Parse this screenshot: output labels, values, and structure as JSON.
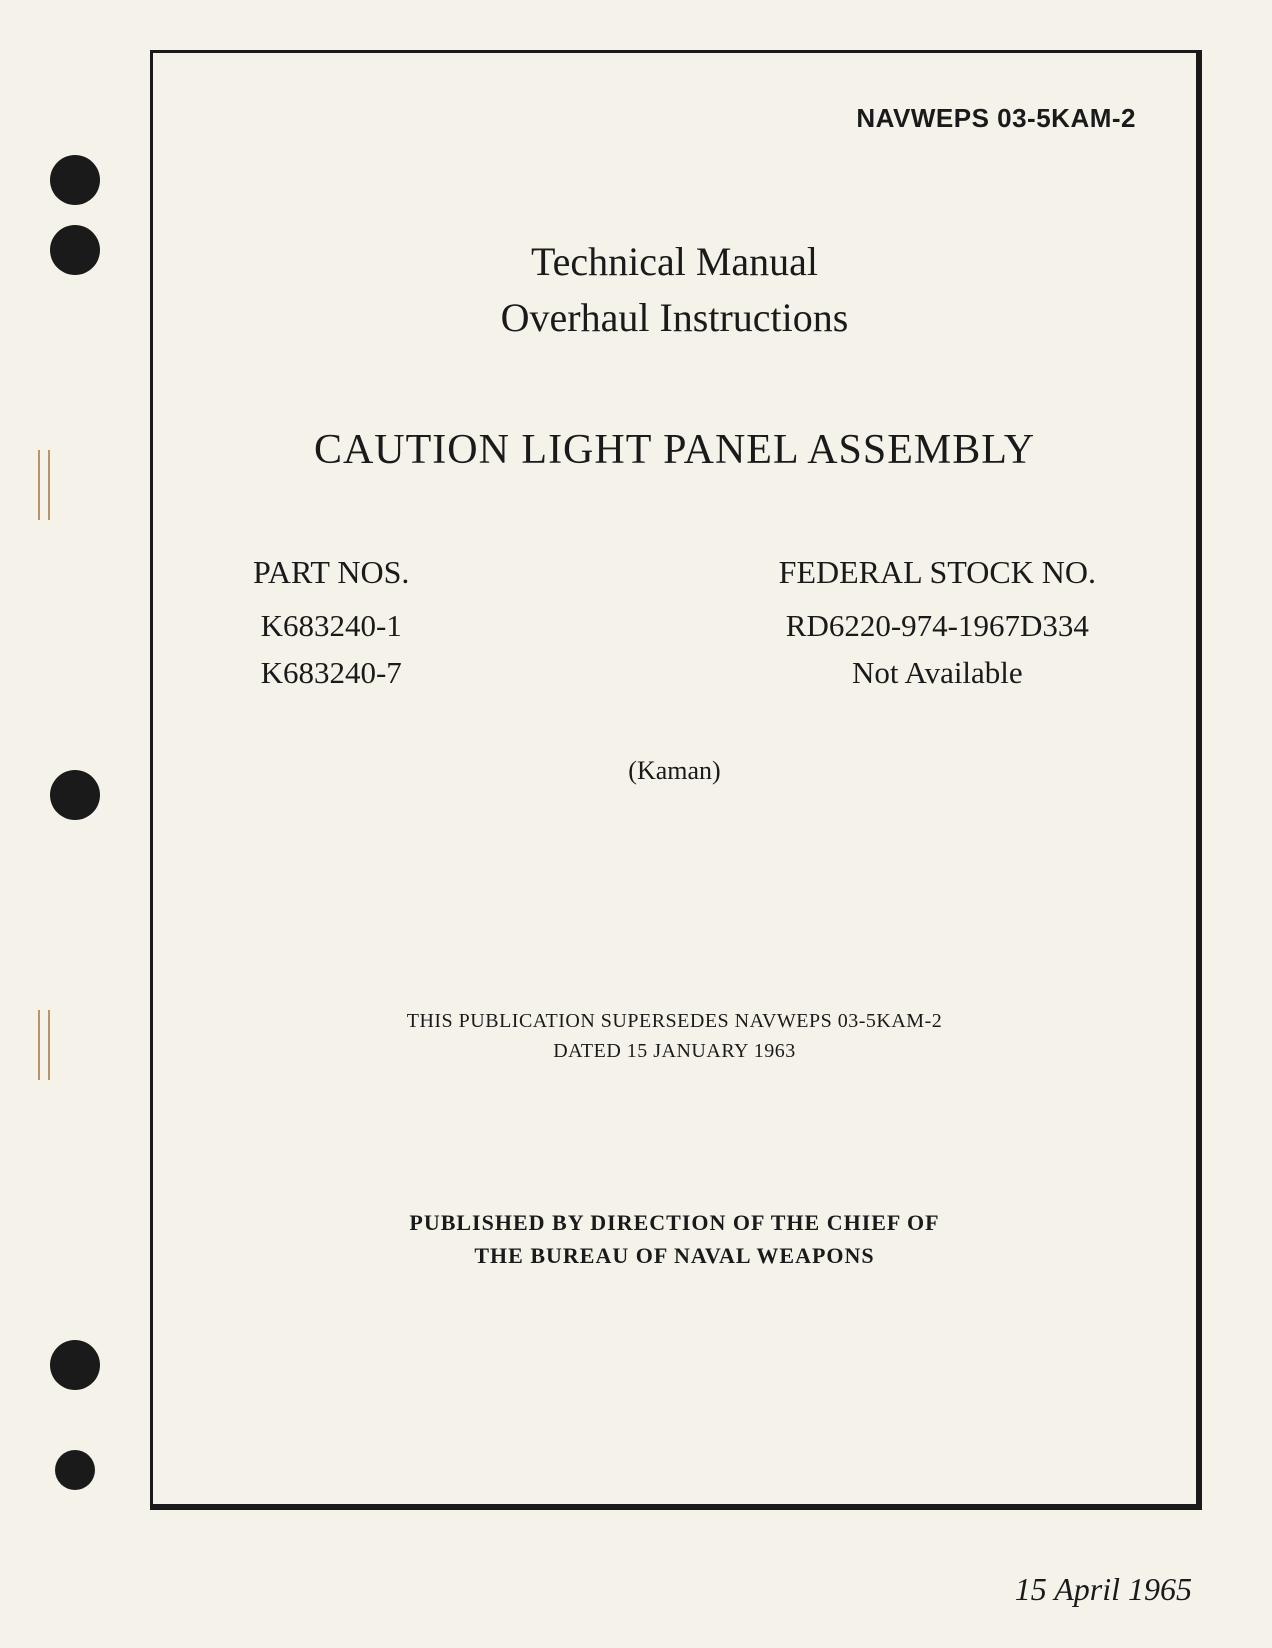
{
  "document": {
    "number": "NAVWEPS 03-5KAM-2",
    "heading_line1": "Technical Manual",
    "heading_line2": "Overhaul Instructions",
    "title": "CAUTION LIGHT PANEL ASSEMBLY",
    "parts": {
      "header": "PART NOS.",
      "items": [
        "K683240-1",
        "K683240-7"
      ]
    },
    "stock": {
      "header": "FEDERAL STOCK NO.",
      "items": [
        "RD6220-974-1967D334",
        "Not Available"
      ]
    },
    "manufacturer": "(Kaman)",
    "supersede_line1": "THIS PUBLICATION SUPERSEDES NAVWEPS 03-5KAM-2",
    "supersede_line2": "DATED 15 JANUARY 1963",
    "publisher_line1": "PUBLISHED BY DIRECTION OF THE CHIEF OF",
    "publisher_line2": "THE BUREAU OF NAVAL WEAPONS",
    "date": "15 April 1965"
  },
  "style": {
    "page_bg": "#f5f2ea",
    "text_color": "#1a1a1a",
    "hole_color": "#1a1a1a",
    "frame_border": "#1a1a1a",
    "spine_color": "#b8946a",
    "fonts": {
      "serif": "Georgia, Times New Roman, serif",
      "sans": "Arial, Helvetica, sans-serif"
    },
    "sizes": {
      "doc_number": 26,
      "heading": 40,
      "title": 42,
      "parts": 31,
      "manufacturer": 26,
      "supersede": 20,
      "publisher": 22,
      "date": 32
    }
  }
}
